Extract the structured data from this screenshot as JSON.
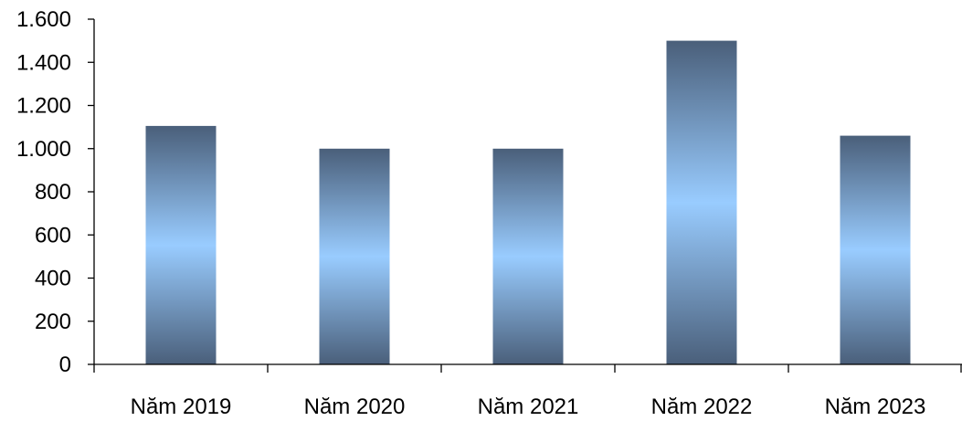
{
  "chart_data": {
    "type": "bar",
    "categories": [
      "Năm 2019",
      "Năm 2020",
      "Năm 2021",
      "Năm 2022",
      "Năm 2023"
    ],
    "values": [
      1105,
      1000,
      1000,
      1500,
      1060
    ],
    "ylim": [
      0,
      1600
    ],
    "yticks": [
      0,
      200,
      400,
      600,
      800,
      1000,
      1200,
      1400,
      1600
    ],
    "ytick_labels": [
      "0",
      "200",
      "400",
      "600",
      "800",
      "1.000",
      "1.200",
      "1.400",
      "1.600"
    ],
    "title": "",
    "xlabel": "",
    "ylabel": "",
    "grid": false,
    "legend": "none",
    "colors": {
      "bar_edge": "#4a5f7a",
      "bar_center": "#99ccff",
      "axis": "#000000"
    }
  }
}
